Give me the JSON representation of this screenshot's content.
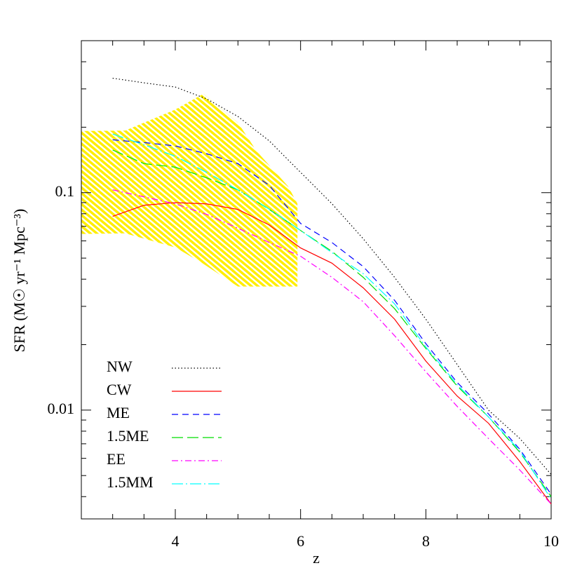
{
  "chart_data": {
    "type": "line",
    "xlabel": "z",
    "ylabel": "SFR (M☉ yr⁻¹ Mpc⁻³)",
    "x": [
      3,
      3.5,
      4,
      4.5,
      5,
      5.5,
      6,
      6.5,
      7,
      7.5,
      8,
      8.5,
      9,
      9.5,
      10
    ],
    "series": [
      {
        "name": "NW",
        "color": "#000000",
        "style": "dotted",
        "values": [
          0.336,
          0.32,
          0.306,
          0.27,
          0.224,
          0.173,
          0.124,
          0.089,
          0.0614,
          0.0408,
          0.0262,
          0.0162,
          0.01,
          0.0074,
          0.00506
        ]
      },
      {
        "name": "CW",
        "color": "#ff0000",
        "style": "solid",
        "values": [
          0.0778,
          0.0875,
          0.09,
          0.0888,
          0.0837,
          0.071,
          0.0557,
          0.0474,
          0.0365,
          0.0262,
          0.0168,
          0.0116,
          0.0087,
          0.0058,
          0.0037
        ]
      },
      {
        "name": "ME",
        "color": "#0000ff",
        "style": "dashed",
        "values": [
          0.175,
          0.17,
          0.164,
          0.151,
          0.136,
          0.108,
          0.0722,
          0.059,
          0.0457,
          0.032,
          0.0202,
          0.0134,
          0.0096,
          0.0066,
          0.0041
        ]
      },
      {
        "name": "1.5ME",
        "color": "#00dd00",
        "style": "long-dashed",
        "values": [
          0.157,
          0.136,
          0.131,
          0.117,
          0.103,
          0.0837,
          0.067,
          0.0537,
          0.0408,
          0.0293,
          0.0192,
          0.0129,
          0.0093,
          0.0064,
          0.004
        ]
      },
      {
        "name": "EE",
        "color": "#ff00ff",
        "style": "dash-dot",
        "values": [
          0.103,
          0.0957,
          0.0888,
          0.0795,
          0.0686,
          0.059,
          0.051,
          0.0408,
          0.0315,
          0.022,
          0.015,
          0.0104,
          0.0074,
          0.0053,
          0.0037
        ]
      },
      {
        "name": "1.5MM",
        "color": "#00ffff",
        "style": "long-dash-dot",
        "values": [
          0.186,
          0.166,
          0.147,
          0.124,
          0.103,
          0.084,
          0.067,
          0.053,
          0.0424,
          0.0308,
          0.0195,
          0.0131,
          0.0093,
          0.0065,
          0.0039
        ]
      }
    ],
    "band": {
      "color": "#ffee00",
      "x": [
        2.5,
        3.2,
        4,
        4.45,
        5,
        5.3,
        5.8,
        5.95
      ],
      "upper": [
        0.192,
        0.193,
        0.241,
        0.285,
        0.21,
        0.155,
        0.107,
        0.089
      ],
      "lower": [
        0.0646,
        0.065,
        0.056,
        0.047,
        0.037,
        0.037,
        0.037,
        0.037
      ]
    },
    "xlim": [
      2.5,
      10
    ],
    "xticks": [
      4,
      6,
      8,
      10
    ],
    "xminorticks": [
      3,
      3.5,
      4.5,
      5,
      5.5,
      6.5,
      7,
      7.5,
      8.5,
      9,
      9.5
    ],
    "ylim": [
      0.00316,
      0.5
    ],
    "log_y": true,
    "yticks": [
      0.01,
      0.1
    ],
    "yminorticks": [
      0.004,
      0.005,
      0.006,
      0.007,
      0.008,
      0.009,
      0.02,
      0.03,
      0.04,
      0.05,
      0.06,
      0.07,
      0.08,
      0.09,
      0.2,
      0.3,
      0.4
    ],
    "legend": "lower-left"
  }
}
